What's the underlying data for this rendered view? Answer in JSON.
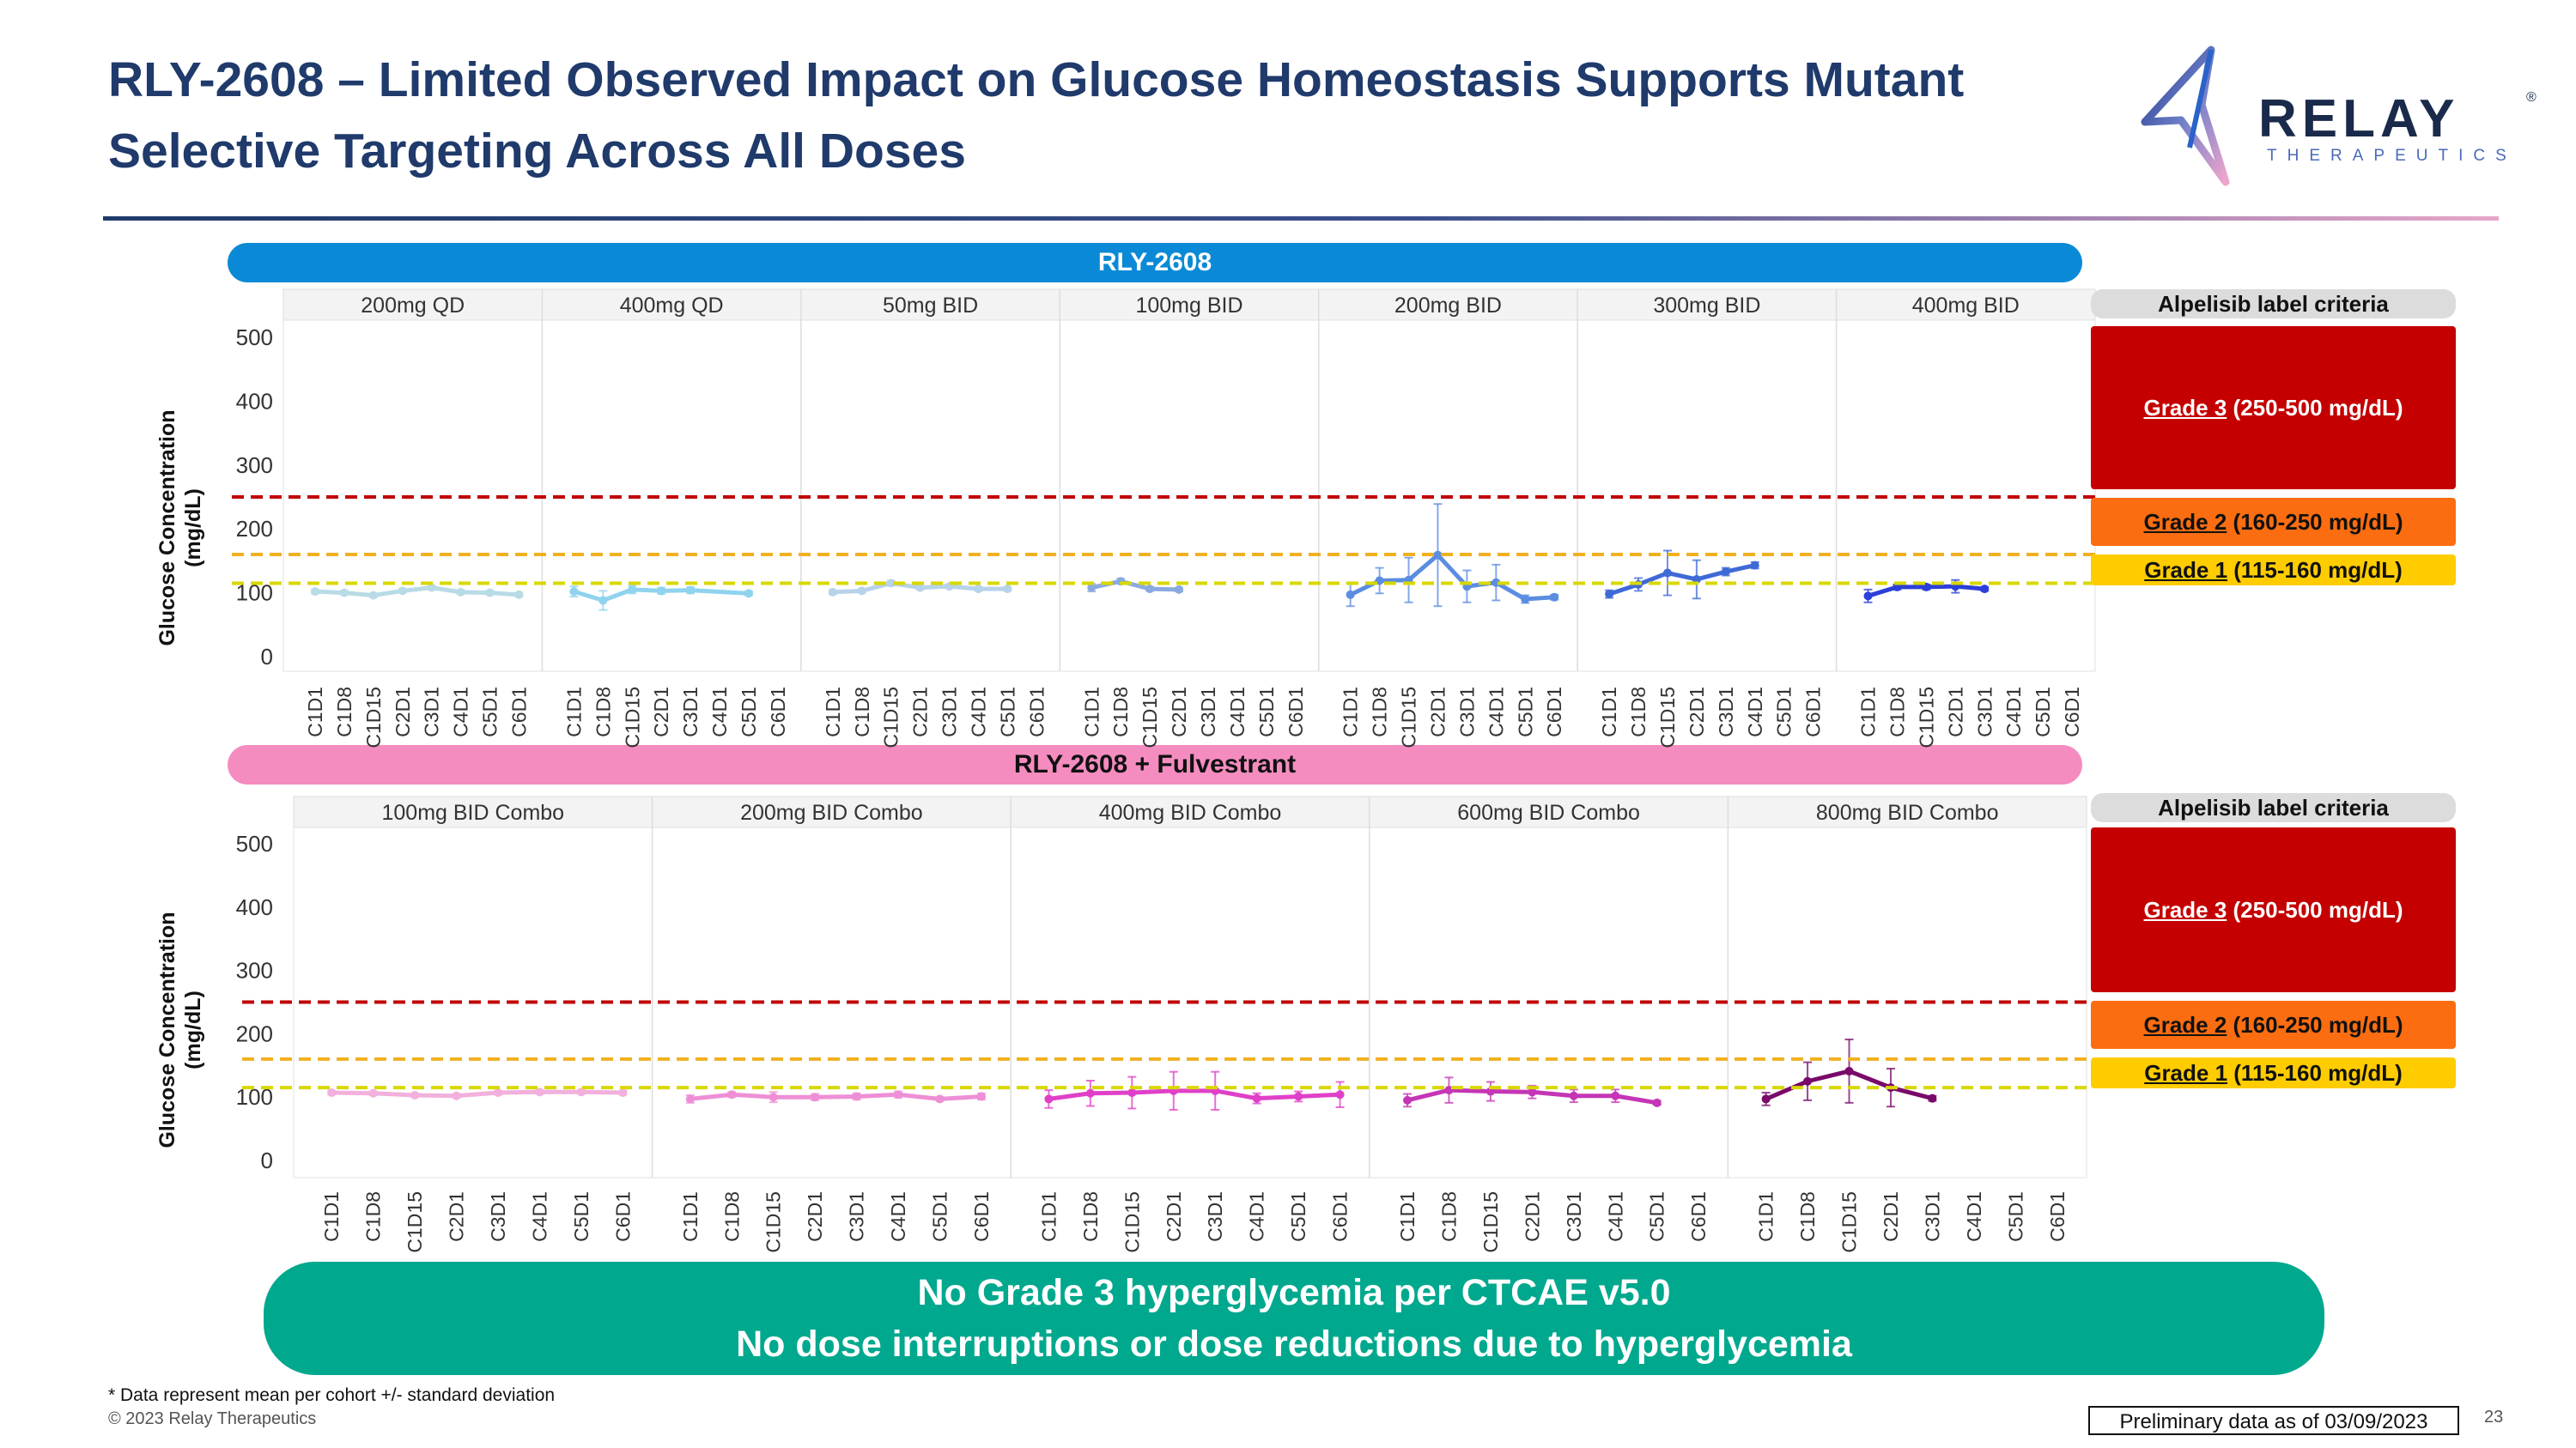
{
  "slide": {
    "title_line1": "RLY-2608 – Limited Observed Impact on Glucose Homeostasis Supports Mutant",
    "title_line2": "Selective Targeting Across All Doses",
    "logo_text": "RELAY",
    "logo_registered": "®",
    "logo_subtext": "THERAPEUTICS",
    "footer_line1": "No Grade 3 hyperglycemia per CTCAE v5.0",
    "footer_line2": "No dose interruptions or dose reductions due to hyperglycemia",
    "footnote": "* Data represent mean per cohort +/- standard deviation",
    "copyright": "© 2023 Relay Therapeutics",
    "preliminary": "Preliminary data as of 03/09/2023",
    "page_number": "23"
  },
  "criteria": {
    "header": "Alpelisib label criteria",
    "grade3_label": "Grade 3",
    "grade3_range": " (250-500 mg/dL)",
    "grade2_label": "Grade 2",
    "grade2_range": "  (160-250 mg/dL)",
    "grade1_label": "Grade 1",
    "grade1_range": " (115-160 mg/dL)",
    "colors": {
      "grade3": "#c40000",
      "grade2": "#fb6d10",
      "grade1": "#ffcc00"
    }
  },
  "chart_data": [
    {
      "type": "line",
      "title": "RLY-2608",
      "ylabel": "Glucose Concentration (mg/dL)",
      "ylim": [
        0,
        500
      ],
      "yticks": [
        0,
        100,
        200,
        300,
        400,
        500
      ],
      "thresholds": [
        {
          "name": "Grade 3 threshold",
          "value": 250,
          "color": "#c00000"
        },
        {
          "name": "Grade 2 threshold",
          "value": 160,
          "color": "#f0b020"
        },
        {
          "name": "Grade 1 threshold",
          "value": 115,
          "color": "#d8d800"
        }
      ],
      "categories": [
        "C1D1",
        "C1D8",
        "C1D15",
        "C2D1",
        "C3D1",
        "C4D1",
        "C5D1",
        "C6D1"
      ],
      "panels": [
        {
          "name": "200mg QD",
          "color": "#b8dbe6",
          "values": [
            102,
            100,
            96,
            103,
            108,
            101,
            100,
            97
          ],
          "errors": [
            3,
            3,
            3,
            3,
            3,
            3,
            3,
            3
          ]
        },
        {
          "name": "400mg QD",
          "color": "#8fd3ee",
          "values": [
            102,
            88,
            105,
            103,
            104,
            null,
            99,
            null
          ],
          "errors": [
            8,
            15,
            6,
            5,
            5,
            null,
            3,
            null
          ]
        },
        {
          "name": "50mg BID",
          "color": "#b7d3ea",
          "values": [
            101,
            103,
            115,
            108,
            110,
            106,
            106,
            null
          ],
          "errors": [
            3,
            3,
            4,
            3,
            3,
            3,
            3,
            null
          ]
        },
        {
          "name": "100mg BID",
          "color": "#8aaadf",
          "values": [
            108,
            118,
            106,
            105,
            null,
            null,
            null,
            null
          ],
          "errors": [
            6,
            4,
            3,
            3,
            null,
            null,
            null,
            null
          ]
        },
        {
          "name": "200mg BID",
          "color": "#5b8de0",
          "values": [
            97,
            119,
            120,
            159,
            110,
            116,
            90,
            93
          ],
          "errors": [
            18,
            20,
            35,
            80,
            25,
            28,
            6,
            4
          ]
        },
        {
          "name": "300mg BID",
          "color": "#3f6ad6",
          "values": [
            98,
            113,
            131,
            121,
            133,
            143,
            null,
            null
          ],
          "errors": [
            6,
            10,
            35,
            30,
            6,
            5,
            null,
            null
          ]
        },
        {
          "name": "400mg BID",
          "color": "#2c3fd8",
          "values": [
            95,
            109,
            109,
            110,
            106,
            null,
            null,
            null
          ],
          "errors": [
            10,
            4,
            4,
            10,
            3,
            null,
            null,
            null
          ]
        }
      ]
    },
    {
      "type": "line",
      "title": "RLY-2608 + Fulvestrant",
      "ylabel": "Glucose Concentration (mg/dL)",
      "ylim": [
        0,
        500
      ],
      "yticks": [
        0,
        100,
        200,
        300,
        400,
        500
      ],
      "thresholds": [
        {
          "name": "Grade 3 threshold",
          "value": 250,
          "color": "#c00000"
        },
        {
          "name": "Grade 2 threshold",
          "value": 160,
          "color": "#f0b020"
        },
        {
          "name": "Grade 1 threshold",
          "value": 115,
          "color": "#d8d800"
        }
      ],
      "categories": [
        "C1D1",
        "C1D8",
        "C1D15",
        "C2D1",
        "C3D1",
        "C4D1",
        "C5D1",
        "C6D1"
      ],
      "panels": [
        {
          "name": "100mg BID Combo",
          "color": "#f2b0dc",
          "values": [
            107,
            106,
            103,
            102,
            107,
            108,
            108,
            107
          ],
          "errors": [
            3,
            3,
            3,
            3,
            3,
            3,
            3,
            3
          ]
        },
        {
          "name": "200mg BID Combo",
          "color": "#ee8fd6",
          "values": [
            97,
            104,
            100,
            100,
            101,
            104,
            97,
            101
          ],
          "errors": [
            6,
            4,
            8,
            5,
            5,
            5,
            3,
            5
          ]
        },
        {
          "name": "400mg BID Combo",
          "color": "#e040c8",
          "values": [
            97,
            106,
            107,
            110,
            110,
            98,
            101,
            104
          ],
          "errors": [
            14,
            20,
            25,
            30,
            30,
            8,
            8,
            20
          ]
        },
        {
          "name": "600mg BID Combo",
          "color": "#c535b5",
          "values": [
            95,
            111,
            109,
            108,
            102,
            102,
            91,
            null
          ],
          "errors": [
            10,
            20,
            15,
            10,
            10,
            10,
            3,
            null
          ]
        },
        {
          "name": "800mg BID Combo",
          "color": "#7a0a6a",
          "values": [
            97,
            125,
            141,
            115,
            98,
            null,
            null,
            null
          ],
          "errors": [
            10,
            30,
            50,
            30,
            4,
            null,
            null,
            null
          ]
        }
      ]
    }
  ]
}
